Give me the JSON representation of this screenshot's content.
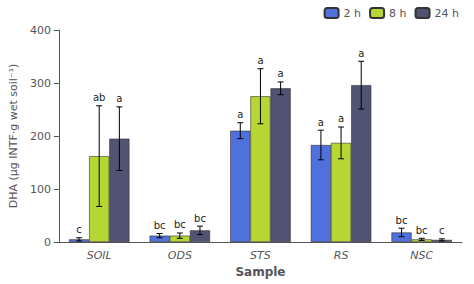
{
  "chart_data": {
    "type": "bar",
    "categories": [
      "SOIL",
      "ODS",
      "STS",
      "RS",
      "NSC"
    ],
    "series": [
      {
        "name": "2 h",
        "values": [
          5,
          12,
          210,
          183,
          18
        ],
        "errors": [
          3,
          4,
          15,
          28,
          8
        ],
        "labels": [
          "c",
          "bc",
          "a",
          "a",
          "bc"
        ]
      },
      {
        "name": "8 h",
        "values": [
          162,
          12,
          275,
          187,
          5
        ],
        "errors": [
          95,
          5,
          52,
          30,
          2
        ],
        "labels": [
          "ab",
          "bc",
          "a",
          "a",
          "bc"
        ]
      },
      {
        "name": "24 h",
        "values": [
          195,
          22,
          290,
          296,
          4
        ],
        "errors": [
          60,
          8,
          12,
          45,
          2
        ],
        "labels": [
          "a",
          "bc",
          "a",
          "a",
          "c"
        ]
      }
    ],
    "xlabel": "Sample",
    "ylabel": "DHA (μg INTF·g wet soil⁻¹)",
    "ylim": [
      0,
      400
    ],
    "yticks": [
      0,
      100,
      200,
      300,
      400
    ],
    "grid": false,
    "legend": "upper right"
  }
}
